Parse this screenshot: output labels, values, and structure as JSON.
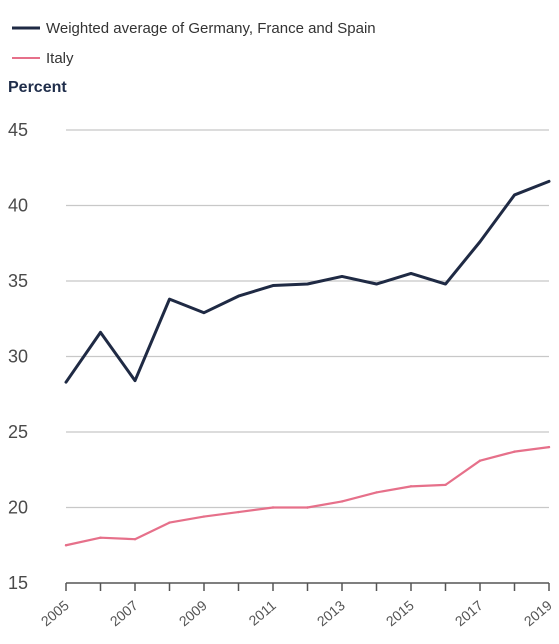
{
  "chart_data": {
    "type": "line",
    "title": "",
    "xlabel": "",
    "ylabel": "Percent",
    "x": [
      2005,
      2006,
      2007,
      2008,
      2009,
      2010,
      2011,
      2012,
      2013,
      2014,
      2015,
      2016,
      2017,
      2018,
      2019
    ],
    "x_tick_labels": [
      "2005",
      "2007",
      "2009",
      "2011",
      "2013",
      "2015",
      "2017",
      "2019"
    ],
    "y_ticks": [
      15,
      20,
      25,
      30,
      35,
      40,
      45
    ],
    "ylim": [
      15,
      45
    ],
    "xlim": [
      2005,
      2019
    ],
    "grid": true,
    "legend_position": "top-left",
    "series": [
      {
        "name": "Weighted average of Germany, France and Spain",
        "color": "#1f2a44",
        "values": [
          28.3,
          31.6,
          28.4,
          33.8,
          32.9,
          34.0,
          34.7,
          34.8,
          35.3,
          34.8,
          35.5,
          34.8,
          37.6,
          40.7,
          41.6
        ]
      },
      {
        "name": "Italy",
        "color": "#e6708a",
        "values": [
          17.5,
          18.0,
          17.9,
          19.0,
          19.4,
          19.7,
          20.0,
          20.0,
          20.4,
          21.0,
          21.4,
          21.5,
          23.1,
          23.7,
          24.0
        ]
      }
    ]
  }
}
